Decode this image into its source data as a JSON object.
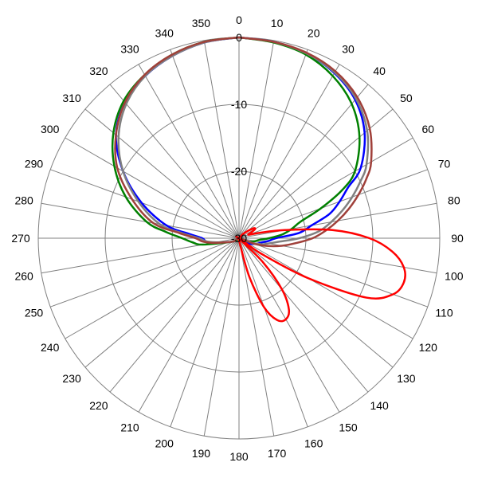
{
  "chart_data": {
    "type": "polar-line",
    "title": "",
    "angle_direction": "clockwise",
    "zero_angle": "top",
    "angle_ticks": [
      0,
      10,
      20,
      30,
      40,
      50,
      60,
      70,
      80,
      90,
      100,
      110,
      120,
      130,
      140,
      150,
      160,
      170,
      180,
      190,
      200,
      210,
      220,
      230,
      240,
      250,
      260,
      270,
      280,
      290,
      300,
      310,
      320,
      330,
      340,
      350
    ],
    "radial_ticks": [
      0,
      -10,
      -20,
      -30
    ],
    "radial_range": [
      -30,
      0
    ],
    "grid": true,
    "legend": "none",
    "series": [
      {
        "color": "#0000ff",
        "points": [
          [
            0,
            0
          ],
          [
            10,
            -0.2
          ],
          [
            20,
            -0.6
          ],
          [
            30,
            -1.5
          ],
          [
            40,
            -3
          ],
          [
            50,
            -5.5
          ],
          [
            60,
            -9
          ],
          [
            65,
            -12
          ],
          [
            70,
            -14
          ],
          [
            75,
            -16
          ],
          [
            80,
            -19
          ],
          [
            85,
            -21
          ],
          [
            90,
            -24.5
          ],
          [
            95,
            -25.5
          ],
          [
            100,
            -26.5
          ],
          [
            105,
            -27
          ],
          [
            110,
            -27.5
          ],
          [
            120,
            -28.5
          ],
          [
            180,
            -30
          ],
          [
            240,
            -29
          ],
          [
            260,
            -26
          ],
          [
            265,
            -25
          ],
          [
            270,
            -24.5
          ],
          [
            275,
            -22.5
          ],
          [
            280,
            -19
          ],
          [
            290,
            -14.5
          ],
          [
            300,
            -10
          ],
          [
            310,
            -6
          ],
          [
            320,
            -3.5
          ],
          [
            330,
            -2
          ],
          [
            340,
            -1
          ],
          [
            350,
            -0.3
          ],
          [
            360,
            0
          ]
        ]
      },
      {
        "color": "#008000",
        "points": [
          [
            0,
            0
          ],
          [
            10,
            -0.3
          ],
          [
            20,
            -0.8
          ],
          [
            30,
            -2
          ],
          [
            40,
            -3.8
          ],
          [
            50,
            -6.5
          ],
          [
            60,
            -10
          ],
          [
            65,
            -13
          ],
          [
            70,
            -17
          ],
          [
            75,
            -20.5
          ],
          [
            80,
            -22
          ],
          [
            85,
            -23.5
          ],
          [
            90,
            -25.5
          ],
          [
            95,
            -27
          ],
          [
            100,
            -27.5
          ],
          [
            110,
            -28.5
          ],
          [
            180,
            -30
          ],
          [
            240,
            -29
          ],
          [
            260,
            -24.5
          ],
          [
            265,
            -23
          ],
          [
            270,
            -21.5
          ],
          [
            275,
            -19
          ],
          [
            280,
            -16
          ],
          [
            290,
            -12
          ],
          [
            300,
            -8.5
          ],
          [
            310,
            -5.5
          ],
          [
            320,
            -3.2
          ],
          [
            330,
            -1.8
          ],
          [
            340,
            -0.8
          ],
          [
            350,
            -0.2
          ],
          [
            360,
            0
          ]
        ]
      },
      {
        "color": "#808080",
        "points": [
          [
            0,
            0
          ],
          [
            10,
            -0.2
          ],
          [
            20,
            -0.6
          ],
          [
            30,
            -1.4
          ],
          [
            40,
            -2.8
          ],
          [
            50,
            -5
          ],
          [
            60,
            -8
          ],
          [
            65,
            -10
          ],
          [
            70,
            -12
          ],
          [
            75,
            -14
          ],
          [
            80,
            -16
          ],
          [
            85,
            -18
          ],
          [
            90,
            -21
          ],
          [
            95,
            -24
          ],
          [
            100,
            -25.5
          ],
          [
            105,
            -26.5
          ],
          [
            110,
            -28
          ],
          [
            180,
            -30
          ],
          [
            240,
            -29
          ],
          [
            260,
            -26.5
          ],
          [
            265,
            -25
          ],
          [
            270,
            -24
          ],
          [
            275,
            -21.5
          ],
          [
            280,
            -18
          ],
          [
            290,
            -14
          ],
          [
            300,
            -10
          ],
          [
            310,
            -6.5
          ],
          [
            320,
            -3.8
          ],
          [
            330,
            -2
          ],
          [
            340,
            -1
          ],
          [
            350,
            -0.3
          ],
          [
            360,
            0
          ]
        ]
      },
      {
        "color": "#a0403a",
        "points": [
          [
            0,
            0
          ],
          [
            10,
            -0.2
          ],
          [
            20,
            -0.5
          ],
          [
            30,
            -1.2
          ],
          [
            40,
            -2.5
          ],
          [
            50,
            -4.5
          ],
          [
            60,
            -7.2
          ],
          [
            65,
            -9
          ],
          [
            70,
            -11
          ],
          [
            75,
            -13
          ],
          [
            80,
            -15
          ],
          [
            85,
            -17
          ],
          [
            90,
            -19
          ],
          [
            95,
            -21.5
          ],
          [
            100,
            -23.5
          ],
          [
            105,
            -25.5
          ],
          [
            110,
            -27.5
          ],
          [
            180,
            -30
          ],
          [
            240,
            -29
          ],
          [
            260,
            -26
          ],
          [
            265,
            -24.5
          ],
          [
            270,
            -23.5
          ],
          [
            275,
            -21
          ],
          [
            280,
            -17
          ],
          [
            290,
            -13
          ],
          [
            300,
            -9
          ],
          [
            310,
            -6
          ],
          [
            320,
            -3.5
          ],
          [
            330,
            -1.8
          ],
          [
            340,
            -0.8
          ],
          [
            350,
            -0.2
          ],
          [
            360,
            0
          ]
        ]
      },
      {
        "color": "#ff0000",
        "points": [
          [
            0,
            -30
          ],
          [
            20,
            -30
          ],
          [
            45,
            -29
          ],
          [
            55,
            -27.5
          ],
          [
            60,
            -27.2
          ],
          [
            65,
            -28
          ],
          [
            70,
            -28.5
          ],
          [
            75,
            -27
          ],
          [
            80,
            -23
          ],
          [
            85,
            -16
          ],
          [
            90,
            -10.5
          ],
          [
            95,
            -7
          ],
          [
            100,
            -5
          ],
          [
            105,
            -4.5
          ],
          [
            110,
            -5.5
          ],
          [
            115,
            -9
          ],
          [
            120,
            -18
          ],
          [
            125,
            -26
          ],
          [
            128,
            -30
          ],
          [
            135,
            -25
          ],
          [
            140,
            -20
          ],
          [
            145,
            -17
          ],
          [
            150,
            -16
          ],
          [
            155,
            -16.5
          ],
          [
            160,
            -19
          ],
          [
            165,
            -24
          ],
          [
            170,
            -29
          ],
          [
            175,
            -30
          ],
          [
            200,
            -30
          ],
          [
            250,
            -30
          ],
          [
            280,
            -30
          ],
          [
            300,
            -29.5
          ],
          [
            330,
            -30
          ],
          [
            360,
            -30
          ]
        ]
      }
    ]
  }
}
